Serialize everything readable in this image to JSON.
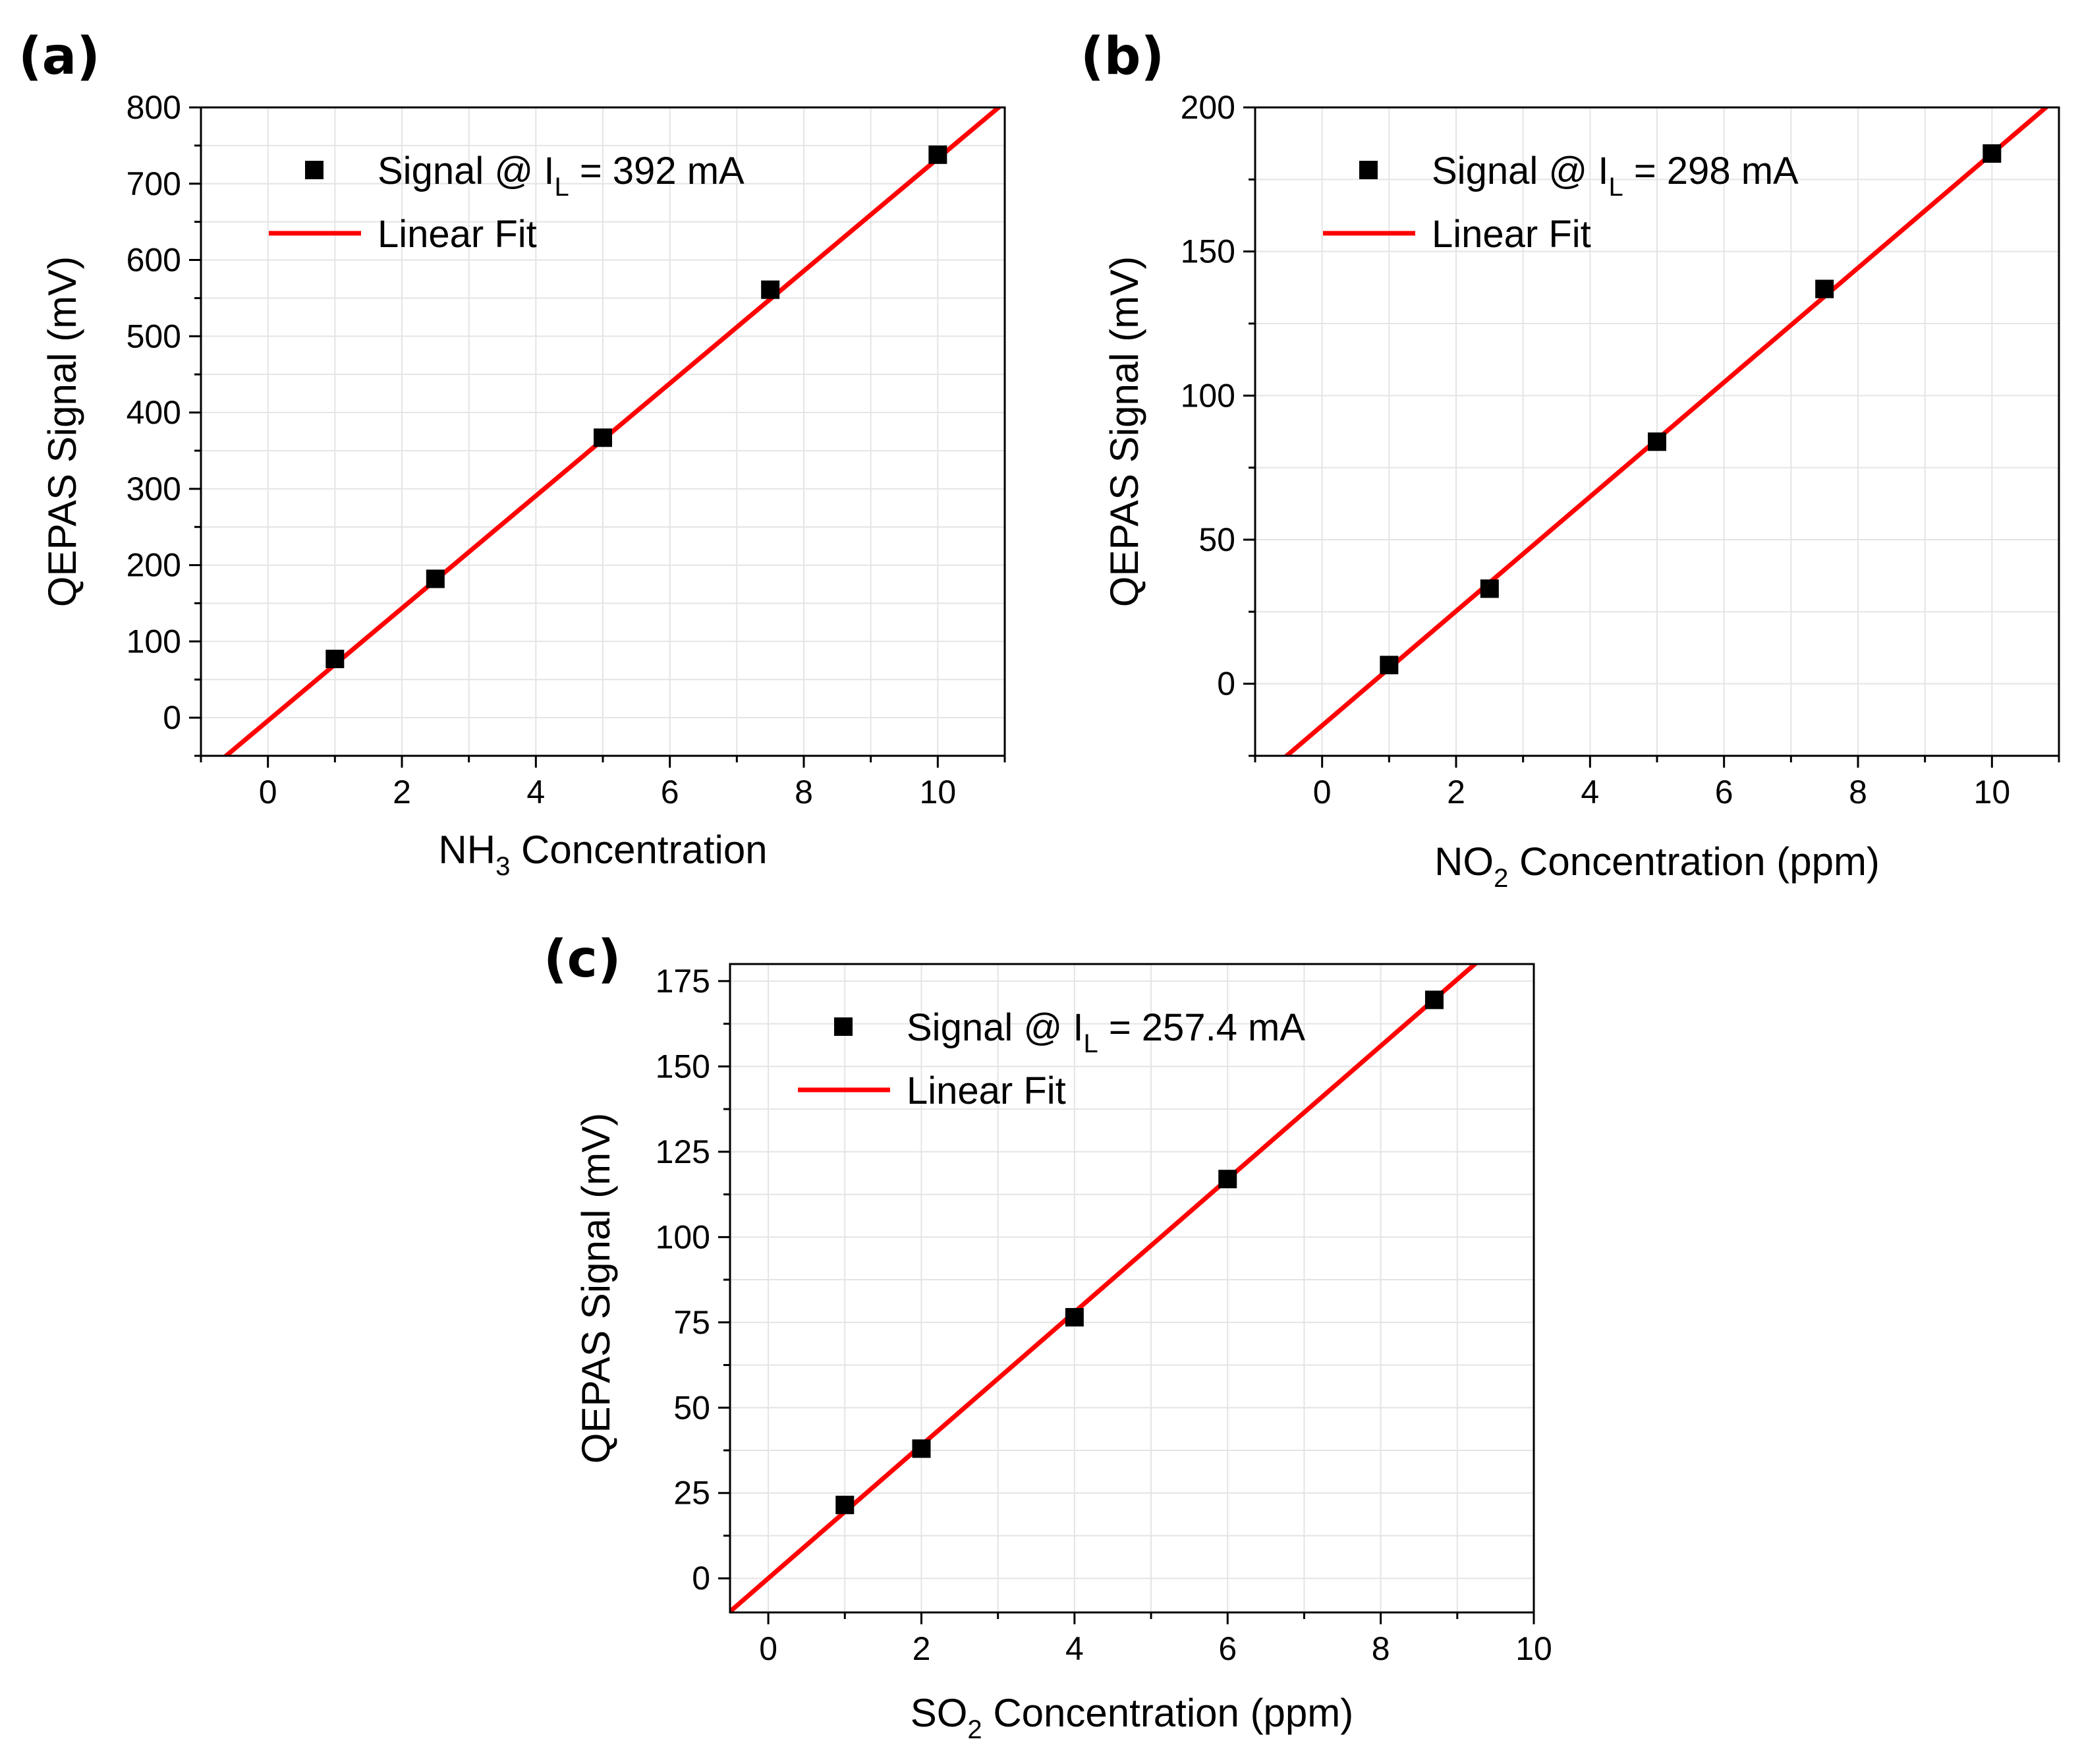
{
  "chart_data": [
    {
      "type": "scatter",
      "panel_label": "(a)",
      "title": "",
      "xlabel": {
        "prefix": "NH",
        "sub": "3",
        "suffix": " Concentration"
      },
      "ylabel": "QEPAS Signal (mV)",
      "xlim": [
        -1,
        11
      ],
      "ylim": [
        -50,
        800
      ],
      "xticks": [
        0,
        2,
        4,
        6,
        8,
        10
      ],
      "yticks": [
        0,
        100,
        200,
        300,
        400,
        500,
        600,
        700,
        800
      ],
      "x_minor_step": 1,
      "y_minor_step": 50,
      "grid": true,
      "series": [
        {
          "name": "Signal @ I_L = 392 mA",
          "marker": "square",
          "color": "#000000",
          "x": [
            1,
            2.5,
            5,
            7.5,
            10
          ],
          "y": [
            77,
            182,
            367,
            561,
            738
          ]
        },
        {
          "name": "Linear Fit",
          "kind": "line",
          "color": "#ff0000",
          "slope": 73.7,
          "intercept": -4,
          "x_range": [
            -1,
            11
          ]
        }
      ],
      "legend": {
        "position": "top-left",
        "entries": [
          {
            "marker": "square",
            "prefix": "Signal @ I",
            "sub": "L",
            "suffix": " = 392 mA"
          },
          {
            "marker": "line",
            "prefix": "Linear Fit",
            "sub": "",
            "suffix": ""
          }
        ]
      }
    },
    {
      "type": "scatter",
      "panel_label": "(b)",
      "title": "",
      "xlabel": {
        "prefix": "NO",
        "sub": "2",
        "suffix": " Concentration (ppm)"
      },
      "ylabel": "QEPAS Signal (mV)",
      "xlim": [
        -1,
        11
      ],
      "ylim": [
        -25,
        200
      ],
      "xticks": [
        0,
        2,
        4,
        6,
        8,
        10
      ],
      "yticks": [
        0,
        50,
        100,
        150,
        200
      ],
      "x_minor_step": 1,
      "y_minor_step": 25,
      "grid": true,
      "series": [
        {
          "name": "Signal @ I_L = 298 mA",
          "marker": "square",
          "color": "#000000",
          "x": [
            1,
            2.5,
            5,
            7.5,
            10
          ],
          "y": [
            6.5,
            33,
            84,
            137,
            184
          ]
        },
        {
          "name": "Linear Fit",
          "kind": "line",
          "color": "#ff0000",
          "slope": 19.85,
          "intercept": -14.5,
          "x_range": [
            -1,
            11
          ]
        }
      ],
      "legend": {
        "position": "top-left",
        "entries": [
          {
            "marker": "square",
            "prefix": "Signal @ I",
            "sub": "L",
            "suffix": " = 298 mA"
          },
          {
            "marker": "line",
            "prefix": "Linear Fit",
            "sub": "",
            "suffix": ""
          }
        ]
      }
    },
    {
      "type": "scatter",
      "panel_label": "(c)",
      "title": "",
      "xlabel": {
        "prefix": "SO",
        "sub": "2",
        "suffix": " Concentration (ppm)"
      },
      "ylabel": "QEPAS Signal (mV)",
      "xlim": [
        -0.5,
        10
      ],
      "ylim": [
        -10,
        180
      ],
      "xticks": [
        0,
        2,
        4,
        6,
        8,
        10
      ],
      "yticks": [
        0,
        25,
        50,
        75,
        100,
        125,
        150,
        175
      ],
      "x_minor_step": 1,
      "y_minor_step": 12.5,
      "grid": true,
      "series": [
        {
          "name": "Signal @ I_L = 257.4 mA",
          "marker": "square",
          "color": "#000000",
          "x": [
            1,
            2,
            4,
            6,
            8.7
          ],
          "y": [
            21.5,
            38,
            76.5,
            117,
            169.5
          ]
        },
        {
          "name": "Linear Fit",
          "kind": "line",
          "color": "#ff0000",
          "slope": 19.5,
          "intercept": 0,
          "x_range": [
            -0.5,
            10
          ]
        }
      ],
      "legend": {
        "position": "top-left",
        "entries": [
          {
            "marker": "square",
            "prefix": "Signal @ I",
            "sub": "L",
            "suffix": " = 257.4 mA"
          },
          {
            "marker": "line",
            "prefix": "Linear Fit",
            "sub": "",
            "suffix": ""
          }
        ]
      }
    }
  ]
}
